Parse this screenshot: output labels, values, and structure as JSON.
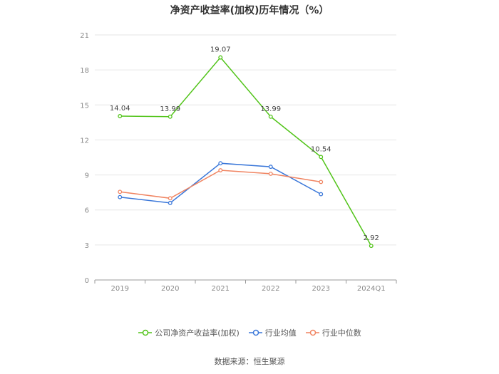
{
  "chart_data": {
    "type": "line",
    "title": "净资产收益率(加权)历年情况（%）",
    "source": "数据来源：恒生聚源",
    "categories": [
      "2019",
      "2020",
      "2021",
      "2022",
      "2023",
      "2024Q1"
    ],
    "ylim": [
      0,
      21
    ],
    "yticks": [
      0,
      3,
      6,
      9,
      12,
      15,
      18,
      21
    ],
    "grid": true,
    "legend_position": "bottom",
    "series": [
      {
        "name": "公司净资产收益率(加权)",
        "color": "#52c41a",
        "values": [
          14.04,
          13.99,
          19.07,
          13.99,
          10.54,
          2.92
        ],
        "labels": [
          "14.04",
          "13.99",
          "19.07",
          "13.99",
          "10.54",
          "2.92"
        ]
      },
      {
        "name": "行业均值",
        "color": "#3a77d9",
        "values": [
          7.1,
          6.6,
          10.0,
          9.7,
          7.35,
          null
        ]
      },
      {
        "name": "行业中位数",
        "color": "#f08461",
        "values": [
          7.55,
          7.0,
          9.4,
          9.1,
          8.4,
          null
        ]
      }
    ]
  }
}
